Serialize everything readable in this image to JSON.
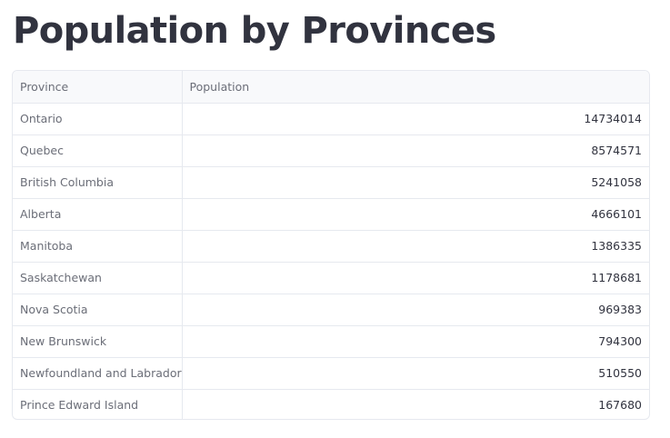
{
  "page": {
    "title": "Population by Provinces"
  },
  "table": {
    "columns": [
      "Province",
      "Population"
    ],
    "rows": [
      {
        "province": "Ontario",
        "population": "14734014"
      },
      {
        "province": "Quebec",
        "population": "8574571"
      },
      {
        "province": "British Columbia",
        "population": "5241058"
      },
      {
        "province": "Alberta",
        "population": "4666101"
      },
      {
        "province": "Manitoba",
        "population": "1386335"
      },
      {
        "province": "Saskatchewan",
        "population": "1178681"
      },
      {
        "province": "Nova Scotia",
        "population": "969383"
      },
      {
        "province": "New Brunswick",
        "population": "794300"
      },
      {
        "province": "Newfoundland and Labrador",
        "population": "510550"
      },
      {
        "province": "Prince Edward Island",
        "population": "167680"
      }
    ]
  }
}
